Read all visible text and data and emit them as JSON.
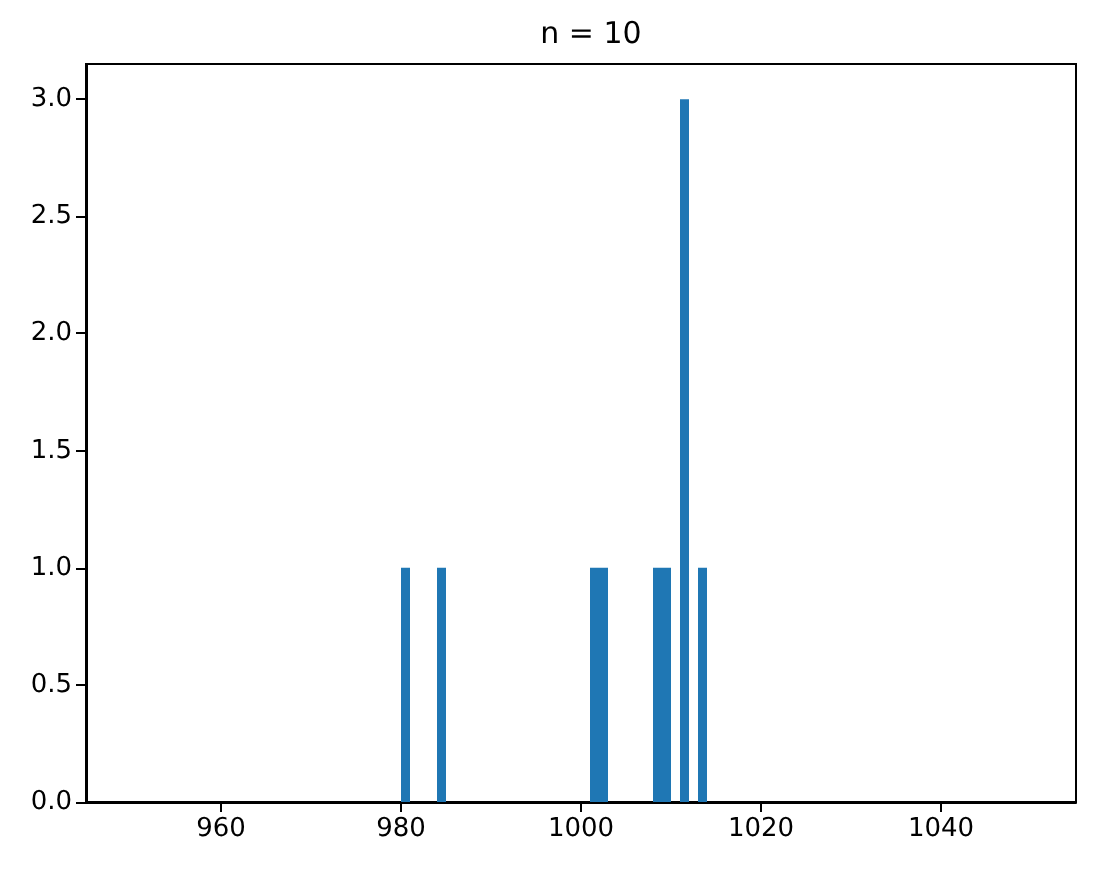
{
  "chart_data": {
    "type": "histogram",
    "title": "n = 10",
    "bins": [
      950,
      951,
      952,
      953,
      954,
      955,
      956,
      957,
      958,
      959,
      960,
      961,
      962,
      963,
      964,
      965,
      966,
      967,
      968,
      969,
      970,
      971,
      972,
      973,
      974,
      975,
      976,
      977,
      978,
      979,
      980,
      981,
      982,
      983,
      984,
      985,
      986,
      987,
      988,
      989,
      990,
      991,
      992,
      993,
      994,
      995,
      996,
      997,
      998,
      999,
      1000,
      1001,
      1002,
      1003,
      1004,
      1005,
      1006,
      1007,
      1008,
      1009,
      1010,
      1011,
      1012,
      1013,
      1014,
      1015,
      1016,
      1017,
      1018,
      1019,
      1020,
      1021,
      1022,
      1023,
      1024,
      1025,
      1026,
      1027,
      1028,
      1029,
      1030,
      1031,
      1032,
      1033,
      1034,
      1035,
      1036,
      1037,
      1038,
      1039,
      1040,
      1041,
      1042,
      1043,
      1044,
      1045,
      1046,
      1047,
      1048,
      1049,
      1050
    ],
    "values": [
      0,
      0,
      0,
      0,
      0,
      0,
      0,
      0,
      0,
      0,
      0,
      0,
      0,
      0,
      0,
      0,
      0,
      0,
      0,
      0,
      0,
      0,
      0,
      0,
      0,
      0,
      0,
      0,
      0,
      0,
      1,
      0,
      0,
      0,
      1,
      0,
      0,
      0,
      0,
      0,
      0,
      0,
      0,
      0,
      0,
      0,
      0,
      0,
      0,
      0,
      0,
      1,
      1,
      0,
      0,
      0,
      0,
      0,
      1,
      1,
      0,
      3,
      0,
      1,
      0,
      0,
      0,
      0,
      0,
      0,
      0,
      0,
      0,
      0,
      0,
      0,
      0,
      0,
      0,
      0,
      0,
      0,
      0,
      0,
      0,
      0,
      0,
      0,
      0,
      0,
      0,
      0,
      0,
      0,
      0,
      0,
      0,
      0,
      0,
      0
    ],
    "color": "#1f77b4",
    "xlim": [
      945,
      1055
    ],
    "xticks": [
      960,
      980,
      1000,
      1020,
      1040
    ],
    "ylim": [
      0,
      3.15
    ],
    "yticks": [
      {
        "value": 0,
        "label": "0.0"
      },
      {
        "value": 0.5,
        "label": "0.5"
      },
      {
        "value": 1,
        "label": "1.0"
      },
      {
        "value": 1.5,
        "label": "1.5"
      },
      {
        "value": 2,
        "label": "2.0"
      },
      {
        "value": 2.5,
        "label": "2.5"
      },
      {
        "value": 3,
        "label": "3.0"
      }
    ],
    "grid": false
  }
}
